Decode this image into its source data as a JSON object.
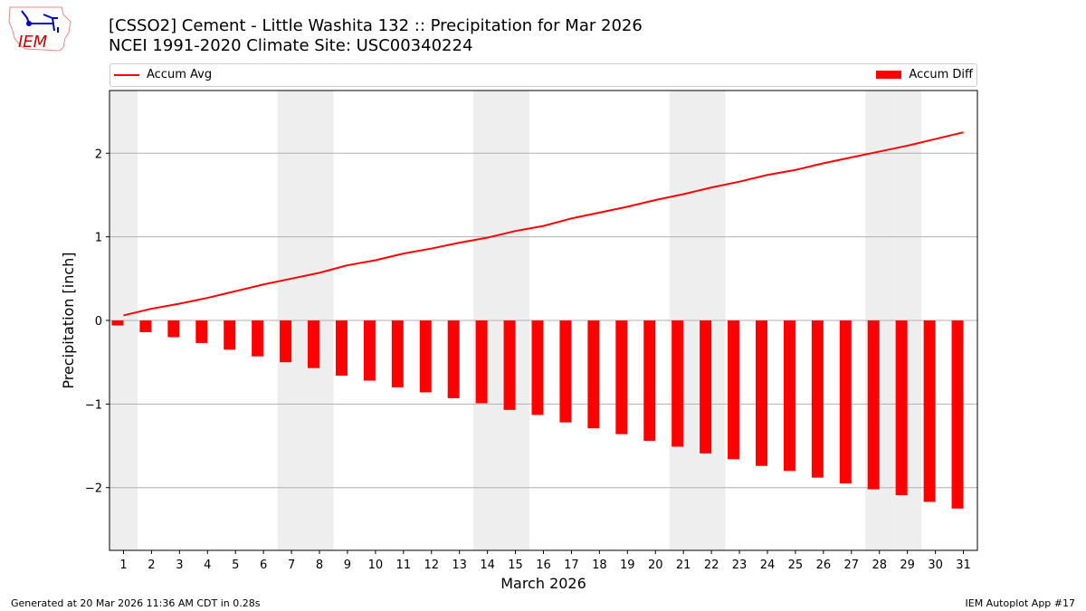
{
  "header": {
    "title": "[CSSO2] Cement - Little Washita 132 :: Precipitation for Mar 2026",
    "subtitle": "NCEI 1991-2020 Climate Site: USC00340224"
  },
  "logo": {
    "text": "IEM"
  },
  "footer": {
    "generated": "Generated at 20 Mar 2026 11:36 AM CDT in 0.28s",
    "app": "IEM Autoplot App #17"
  },
  "chart_data": {
    "type": "bar",
    "xlabel": "March 2026",
    "ylabel": "Precipitation [inch]",
    "xlim": [
      0.5,
      31.5
    ],
    "ylim": [
      -2.75,
      2.75
    ],
    "yticks": [
      -2,
      -1,
      0,
      1,
      2
    ],
    "ytick_labels": [
      "−2",
      "−1",
      "0",
      "1",
      "2"
    ],
    "grid": "y",
    "legend_placement": "top, above plot",
    "weekend_days": [
      1,
      7,
      8,
      14,
      15,
      21,
      22,
      28,
      29
    ],
    "x": [
      1,
      2,
      3,
      4,
      5,
      6,
      7,
      8,
      9,
      10,
      11,
      12,
      13,
      14,
      15,
      16,
      17,
      18,
      19,
      20,
      21,
      22,
      23,
      24,
      25,
      26,
      27,
      28,
      29,
      30,
      31
    ],
    "series": [
      {
        "name": "Accum Avg",
        "type": "line",
        "color": "#ff0000",
        "values": [
          0.06,
          0.14,
          0.2,
          0.27,
          0.35,
          0.43,
          0.5,
          0.57,
          0.66,
          0.72,
          0.8,
          0.86,
          0.93,
          0.99,
          1.07,
          1.13,
          1.22,
          1.29,
          1.36,
          1.44,
          1.51,
          1.59,
          1.66,
          1.74,
          1.8,
          1.88,
          1.95,
          2.02,
          2.09,
          2.17,
          2.25
        ]
      },
      {
        "name": "Accum Diff",
        "type": "bar",
        "color": "#ff0000",
        "values": [
          -0.06,
          -0.14,
          -0.2,
          -0.27,
          -0.35,
          -0.43,
          -0.5,
          -0.57,
          -0.66,
          -0.72,
          -0.8,
          -0.86,
          -0.93,
          -0.99,
          -1.07,
          -1.13,
          -1.22,
          -1.29,
          -1.36,
          -1.44,
          -1.51,
          -1.59,
          -1.66,
          -1.74,
          -1.8,
          -1.88,
          -1.95,
          -2.02,
          -2.09,
          -2.17,
          -2.25
        ]
      }
    ]
  }
}
